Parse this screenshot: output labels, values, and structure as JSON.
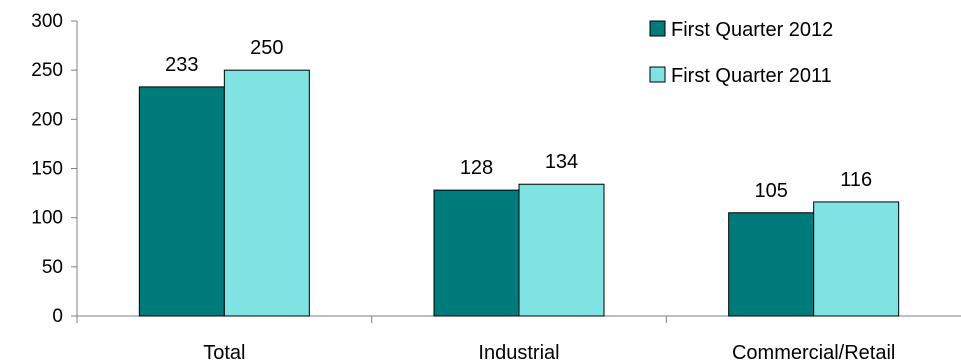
{
  "chart_data": {
    "type": "bar",
    "categories": [
      "Total",
      "Industrial",
      "Commercial/Retail"
    ],
    "series": [
      {
        "name": "First Quarter 2012",
        "values": [
          233,
          128,
          105
        ],
        "color": "#007b7b"
      },
      {
        "name": "First Quarter 2011",
        "values": [
          250,
          134,
          116
        ],
        "color": "#7fe3e3"
      }
    ],
    "ylim": [
      0,
      300
    ],
    "yticks": [
      0,
      50,
      100,
      150,
      200,
      250,
      300
    ],
    "grid": false,
    "legend_position": "top-right",
    "data_labels": true
  }
}
